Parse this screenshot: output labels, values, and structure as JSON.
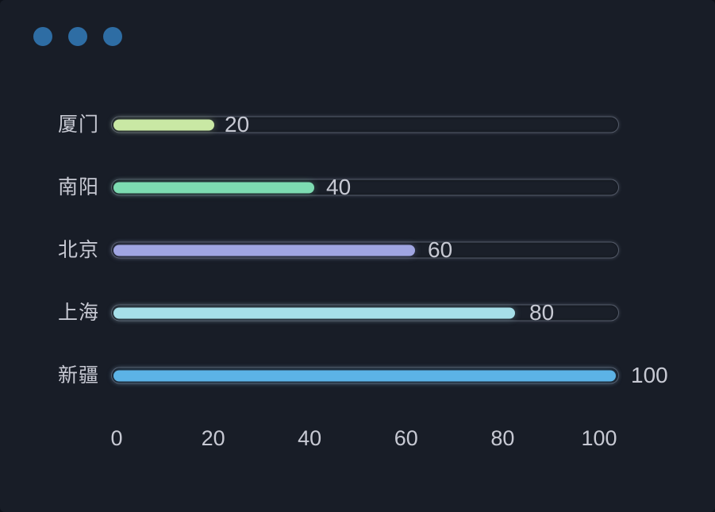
{
  "window": {
    "controls": {
      "dot_count": 3,
      "dot_color": "#2e6da4"
    }
  },
  "colors": {
    "background": "#181d27",
    "text": "#c7c9d3",
    "track_border": "#8a93a6",
    "window_dot": "#2e6da4"
  },
  "chart_data": {
    "type": "bar",
    "orientation": "horizontal",
    "title": "",
    "xlabel": "",
    "ylabel": "",
    "categories": [
      "厦门",
      "南阳",
      "北京",
      "上海",
      "新疆"
    ],
    "values": [
      20,
      40,
      60,
      80,
      100
    ],
    "value_labels": [
      "20",
      "40",
      "60",
      "80",
      "100"
    ],
    "bar_colors": [
      "#c9e8a4",
      "#7ddcb2",
      "#a0a5e2",
      "#a6dfe9",
      "#5cb3e6"
    ],
    "x_ticks": [
      0,
      20,
      40,
      60,
      80,
      100
    ],
    "xlim": [
      0,
      100
    ],
    "grid": false,
    "legend": false,
    "track_background": true
  }
}
